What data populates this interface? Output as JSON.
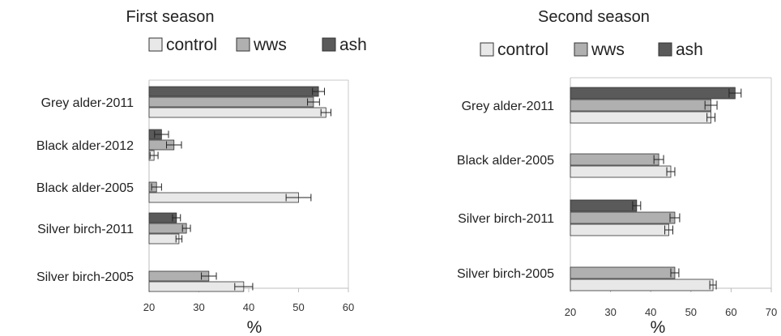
{
  "chart_data": [
    {
      "type": "bar",
      "orientation": "horizontal",
      "title": "First season",
      "xlabel": "%",
      "xlim": [
        20,
        60
      ],
      "xticks": [
        "20",
        "30",
        "40",
        "50",
        "60"
      ],
      "grid": false,
      "legend": "top",
      "categories": [
        "Grey alder-2011",
        "Black alder-2012",
        "Black alder-2005",
        "Silver birch-2011",
        "Silver birch-2005"
      ],
      "series": [
        {
          "name": "ash",
          "color": "#5a5a5a",
          "values": [
            54,
            22.5,
            null,
            25.5,
            null
          ],
          "errors": [
            1.2,
            1.4,
            null,
            0.8,
            null
          ]
        },
        {
          "name": "wws",
          "color": "#b0b0b0",
          "values": [
            53,
            25,
            21.5,
            27.5,
            32
          ],
          "errors": [
            1.2,
            1.5,
            1.0,
            0.8,
            1.5
          ]
        },
        {
          "name": "control",
          "color": "#e8e8e8",
          "values": [
            55.5,
            21,
            50,
            26,
            39
          ],
          "errors": [
            1.0,
            0.8,
            2.5,
            0.6,
            1.8
          ]
        }
      ]
    },
    {
      "type": "bar",
      "orientation": "horizontal",
      "title": "Second season",
      "xlabel": "%",
      "xlim": [
        20,
        70
      ],
      "xticks": [
        "20",
        "30",
        "40",
        "50",
        "60",
        "70"
      ],
      "grid": false,
      "legend": "top",
      "categories": [
        "Grey alder-2011",
        "Black alder-2005",
        "Silver birch-2011",
        "Silver birch-2005"
      ],
      "series": [
        {
          "name": "ash",
          "color": "#5a5a5a",
          "values": [
            61,
            null,
            36.5,
            null
          ],
          "errors": [
            1.5,
            null,
            1.0,
            null
          ]
        },
        {
          "name": "wws",
          "color": "#b0b0b0",
          "values": [
            55,
            42,
            46,
            46
          ],
          "errors": [
            1.5,
            1.2,
            1.2,
            1.0
          ]
        },
        {
          "name": "control",
          "color": "#e8e8e8",
          "values": [
            55,
            45,
            44.5,
            55.5
          ],
          "errors": [
            1.0,
            1.0,
            1.0,
            0.8
          ]
        }
      ]
    }
  ]
}
